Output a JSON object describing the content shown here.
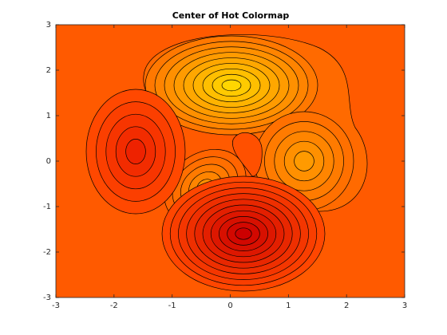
{
  "chart_data": {
    "type": "contour",
    "title": "Center of Hot Colormap",
    "xlim": [
      -3,
      3
    ],
    "ylim": [
      -3,
      3
    ],
    "xticks": [
      -3,
      -2,
      -1,
      0,
      1,
      2,
      3
    ],
    "yticks": [
      -3,
      -2,
      -1,
      0,
      1,
      2,
      3
    ]
  }
}
